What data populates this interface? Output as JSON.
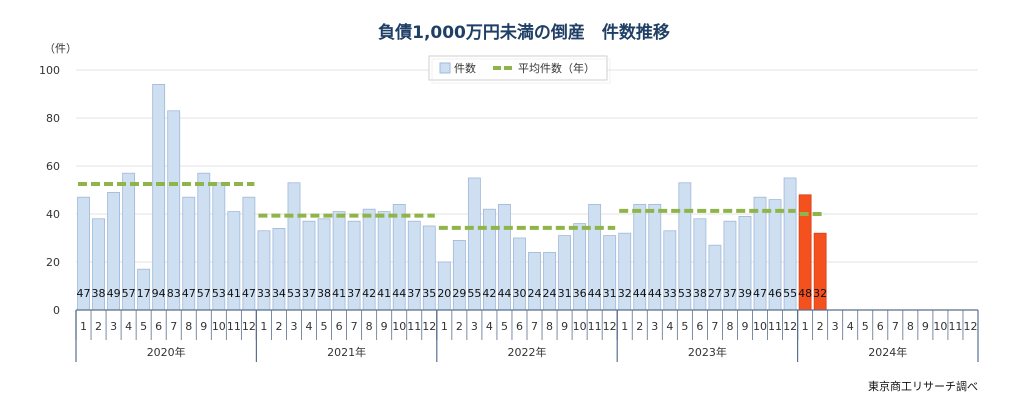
{
  "chart_data": {
    "type": "bar",
    "title": "負債1,000万円未満の倒産　件数推移",
    "y_unit": "（件）",
    "ylim": [
      0,
      100
    ],
    "yticks": [
      0,
      20,
      40,
      60,
      80,
      100
    ],
    "grid": true,
    "legend_position": "top-center",
    "legend": {
      "bars": "件数",
      "avg_line": "平均件数（年）"
    },
    "colors": {
      "bar": "#cfdff2",
      "bar_border": "#9fb8d8",
      "highlight_bar": "#f4511e",
      "avg_line": "#8fb54a",
      "grid": "#e3e3e3",
      "title": "#1f3f66"
    },
    "years": [
      {
        "label": "2020年",
        "values": [
          47,
          38,
          49,
          57,
          17,
          94,
          83,
          47,
          57,
          53,
          41,
          47
        ],
        "average": 52.5
      },
      {
        "label": "2021年",
        "values": [
          33,
          34,
          53,
          37,
          38,
          41,
          37,
          42,
          41,
          44,
          37,
          35
        ],
        "average": 39.3
      },
      {
        "label": "2022年",
        "values": [
          20,
          29,
          55,
          42,
          44,
          30,
          24,
          24,
          31,
          36,
          44,
          31
        ],
        "average": 34.2
      },
      {
        "label": "2023年",
        "values": [
          32,
          44,
          44,
          33,
          53,
          38,
          27,
          37,
          39,
          47,
          46,
          55
        ],
        "average": 41.3
      },
      {
        "label": "2024年",
        "values": [
          48,
          32
        ],
        "average": 40,
        "highlight": true
      }
    ],
    "month_labels": [
      "1",
      "2",
      "3",
      "4",
      "5",
      "6",
      "7",
      "8",
      "9",
      "10",
      "11",
      "12"
    ]
  },
  "source": "東京商工リサーチ調べ"
}
